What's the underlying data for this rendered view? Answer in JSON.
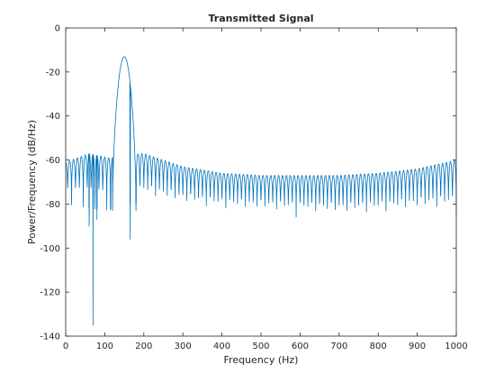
{
  "chart_data": {
    "type": "line",
    "title": "Transmitted Signal",
    "xlabel": "Frequency (Hz)",
    "ylabel": "Power/Frequency (dB/Hz)",
    "xlim": [
      0,
      1000
    ],
    "ylim": [
      -140,
      0
    ],
    "xticks": [
      0,
      100,
      200,
      300,
      400,
      500,
      600,
      700,
      800,
      900,
      1000
    ],
    "yticks": [
      -140,
      -120,
      -100,
      -80,
      -60,
      -40,
      -20,
      0
    ],
    "grid": false,
    "legend": "none",
    "series": [
      {
        "color": "#0072bd",
        "main_lobe": {
          "center_hz": 150,
          "peak_db": -13,
          "null_low_hz": 120,
          "null_high_hz": 180
        },
        "sidelobe_spacing_hz": 10,
        "deep_nulls": [
          [
            70,
            -135
          ],
          [
            60,
            -90
          ],
          [
            80,
            -87
          ],
          [
            165,
            -96
          ],
          [
            180,
            -80
          ],
          [
            115,
            -82
          ]
        ],
        "upper_envelope": [
          [
            0,
            -61
          ],
          [
            60,
            -57
          ],
          [
            110,
            -59
          ],
          [
            200,
            -57
          ],
          [
            300,
            -63
          ],
          [
            400,
            -66
          ],
          [
            500,
            -67
          ],
          [
            600,
            -67
          ],
          [
            700,
            -67
          ],
          [
            800,
            -66
          ],
          [
            900,
            -64
          ],
          [
            1000,
            -60
          ]
        ],
        "lower_envelope": [
          [
            0,
            -80
          ],
          [
            100,
            -83
          ],
          [
            200,
            -79
          ],
          [
            300,
            -82
          ],
          [
            400,
            -84
          ],
          [
            500,
            -85
          ],
          [
            600,
            -86
          ],
          [
            700,
            -87
          ],
          [
            800,
            -86
          ],
          [
            900,
            -85
          ],
          [
            1000,
            -85
          ]
        ]
      }
    ]
  }
}
